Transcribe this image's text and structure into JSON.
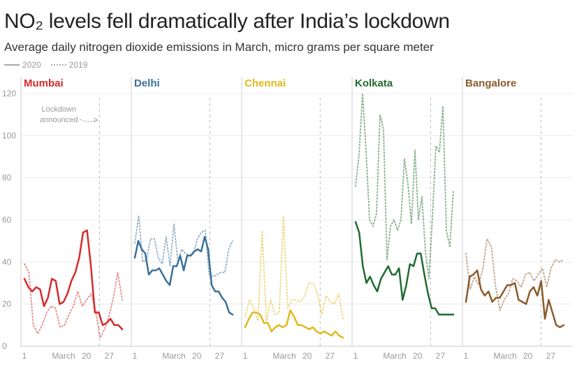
{
  "chart_data": {
    "type": "line",
    "title": "NO₂ levels fell dramatically after India’s lockdown",
    "subtitle": "Average daily nitrogen dioxide emissions in March, micro grams per square meter",
    "legend": [
      {
        "name": "2020",
        "style": "solid"
      },
      {
        "name": "2019",
        "style": "dotted"
      }
    ],
    "ylim": [
      0,
      120
    ],
    "yticks": [
      "0",
      "20",
      "40",
      "60",
      "80",
      "100",
      "120"
    ],
    "xlim": [
      1,
      31
    ],
    "xticks": [
      {
        "day": 1,
        "label": "1"
      },
      {
        "day": 13,
        "label": "March"
      },
      {
        "day": 20,
        "label": "20"
      },
      {
        "day": 27,
        "label": "27"
      }
    ],
    "lockdown_day": 24,
    "annotation": {
      "line1": "Lockdown",
      "line2": "announced"
    },
    "panels": [
      {
        "city": "Mumbai",
        "color": "#d42b2b",
        "series": [
          {
            "name": "2020",
            "values": [
              32,
              28,
              26,
              28,
              27,
              19,
              23,
              32,
              31,
              20,
              21,
              25,
              31,
              35,
              42,
              54,
              55,
              38,
              16,
              16,
              10,
              11,
              13,
              10,
              10,
              8
            ]
          },
          {
            "name": "2019",
            "values": [
              39,
              35,
              10,
              6,
              10,
              16,
              19,
              18,
              9,
              10,
              15,
              19,
              26,
              19,
              22,
              25,
              17,
              4,
              8,
              14,
              23,
              35,
              22
            ]
          }
        ]
      },
      {
        "city": "Delhi",
        "color": "#3b7099",
        "series": [
          {
            "name": "2020",
            "values": [
              42,
              50,
              46,
              44,
              34,
              36,
              36,
              37,
              34,
              31,
              29,
              38,
              38,
              43,
              36,
              43,
              43,
              45,
              46,
              45,
              52,
              46,
              29,
              26,
              26,
              23,
              21,
              16,
              15
            ]
          },
          {
            "name": "2019",
            "values": [
              49,
              62,
              40,
              41,
              51,
              51,
              42,
              39,
              52,
              38,
              58,
              40,
              46,
              44,
              43,
              44,
              51,
              54,
              55,
              34,
              33,
              34,
              35,
              35,
              46,
              50
            ]
          }
        ]
      },
      {
        "city": "Chennai",
        "color": "#e2b81a",
        "series": [
          {
            "name": "2020",
            "values": [
              9,
              13,
              16,
              16,
              15,
              11,
              11,
              7,
              9,
              10,
              9,
              10,
              17,
              14,
              10,
              10,
              9,
              8,
              9,
              7,
              6,
              7,
              6,
              5,
              7,
              5,
              4
            ]
          },
          {
            "name": "2019",
            "values": [
              14,
              22,
              18,
              12,
              55,
              12,
              22,
              15,
              16,
              62,
              18,
              22,
              22,
              21,
              24,
              30,
              30,
              25,
              15,
              24,
              21,
              20,
              25,
              13
            ]
          }
        ]
      },
      {
        "city": "Kolkata",
        "color": "#1f6b30",
        "series": [
          {
            "name": "2020",
            "values": [
              59,
              54,
              38,
              30,
              33,
              29,
              26,
              32,
              35,
              38,
              34,
              34,
              37,
              22,
              29,
              39,
              38,
              44,
              44,
              34,
              25,
              18,
              18,
              15,
              15,
              15,
              15,
              15
            ]
          },
          {
            "name": "2019",
            "values": [
              76,
              91,
              120,
              93,
              60,
              57,
              63,
              110,
              103,
              41,
              57,
              60,
              55,
              60,
              89,
              77,
              58,
              93,
              60,
              71,
              45,
              32,
              61,
              95,
              92,
              114,
              55,
              47,
              74
            ]
          }
        ]
      },
      {
        "city": "Bangalore",
        "color": "#8b5a2b",
        "series": [
          {
            "name": "2020",
            "values": [
              21,
              33,
              34,
              36,
              27,
              24,
              26,
              21,
              23,
              23,
              26,
              29,
              29,
              30,
              22,
              21,
              20,
              26,
              28,
              24,
              31,
              13,
              22,
              16,
              10,
              9,
              10
            ]
          },
          {
            "name": "2019",
            "values": [
              44,
              27,
              33,
              29,
              37,
              51,
              47,
              28,
              17,
              22,
              25,
              32,
              31,
              28,
              34,
              35,
              31,
              34,
              37,
              28,
              37,
              41,
              40,
              41
            ]
          }
        ]
      }
    ]
  }
}
